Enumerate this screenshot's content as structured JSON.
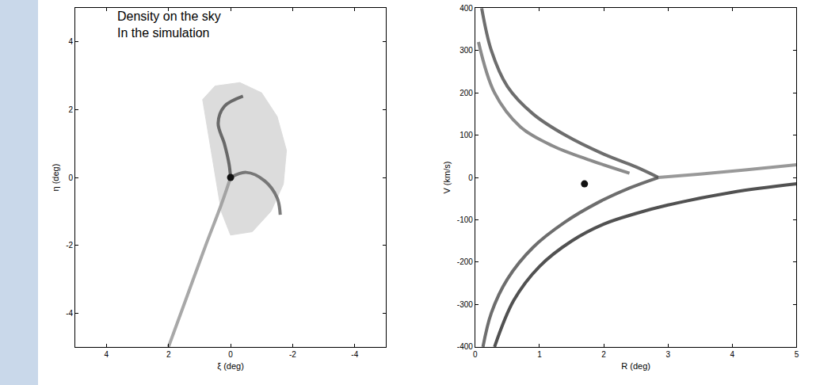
{
  "chart_data": [
    {
      "type": "line",
      "annotation": "Density on the sky\nIn the simulation",
      "x_label": "ξ (deg)",
      "y_label": "η (deg)",
      "xlim": [
        5,
        -5
      ],
      "ylim": [
        -5,
        5
      ],
      "xticks": [
        4,
        2,
        0,
        -2,
        -4
      ],
      "yticks": [
        -4,
        -2,
        0,
        2,
        4
      ],
      "grid": false,
      "series": [
        {
          "type": "area",
          "color": "#d9d9d9",
          "x": [
            0.9,
            0.5,
            -0.3,
            -1.0,
            -1.5,
            -1.8,
            -1.7,
            -1.3,
            -0.7,
            0.0,
            0.3,
            0.9
          ],
          "values": [
            2.3,
            2.7,
            2.8,
            2.5,
            1.8,
            0.8,
            -0.2,
            -1.0,
            -1.6,
            -1.7,
            -1.0,
            2.3
          ]
        },
        {
          "type": "line",
          "color": "#999999",
          "x": [
            0,
            0.3,
            0.8,
            1.4,
            2.0
          ],
          "values": [
            0,
            -0.8,
            -2,
            -3.5,
            -5
          ]
        },
        {
          "type": "line",
          "color": "#555555",
          "x": [
            0,
            0.05,
            0.2,
            0.4,
            0.2,
            -0.4
          ],
          "values": [
            0,
            0.4,
            1.0,
            1.6,
            2.1,
            2.4
          ]
        },
        {
          "type": "line",
          "color": "#666666",
          "x": [
            0,
            -0.5,
            -1.1,
            -1.5,
            -1.6
          ],
          "values": [
            0,
            0.15,
            -0.1,
            -0.6,
            -1.1
          ]
        },
        {
          "type": "scatter",
          "color": "#111111",
          "x": [
            0
          ],
          "values": [
            0
          ]
        }
      ]
    },
    {
      "type": "line",
      "x_label": "R (deg)",
      "y_label": "V (km/s)",
      "xlim": [
        0,
        5
      ],
      "ylim": [
        -400,
        400
      ],
      "xticks": [
        0,
        1,
        2,
        3,
        4,
        5
      ],
      "yticks": [
        -400,
        -300,
        -200,
        -100,
        0,
        100,
        200,
        300,
        400
      ],
      "grid": false,
      "series": [
        {
          "type": "line",
          "color": "#555555",
          "x": [
            0.1,
            0.25,
            0.5,
            0.9,
            1.4,
            2.0,
            2.5,
            2.85
          ],
          "values": [
            400,
            300,
            215,
            150,
            100,
            55,
            25,
            0
          ]
        },
        {
          "type": "line",
          "color": "#555555",
          "x": [
            2.85,
            2.4,
            1.9,
            1.4,
            0.9,
            0.5,
            0.25,
            0.12
          ],
          "values": [
            0,
            -25,
            -60,
            -105,
            -165,
            -240,
            -320,
            -400
          ]
        },
        {
          "type": "line",
          "color": "#333333",
          "x": [
            0.3,
            0.6,
            1.0,
            1.5,
            2.0,
            2.5,
            3,
            4,
            5
          ],
          "values": [
            -400,
            -290,
            -210,
            -150,
            -110,
            -85,
            -65,
            -35,
            -15
          ]
        },
        {
          "type": "line",
          "color": "#888888",
          "x": [
            2.85,
            3.5,
            4.2,
            5
          ],
          "values": [
            0,
            8,
            18,
            30
          ]
        },
        {
          "type": "line",
          "color": "#777777",
          "x": [
            0.05,
            0.3,
            0.7,
            1.2,
            1.8,
            2.4
          ],
          "values": [
            320,
            200,
            120,
            75,
            40,
            10
          ]
        },
        {
          "type": "scatter",
          "color": "#111111",
          "x": [
            1.7
          ],
          "values": [
            -15
          ]
        }
      ]
    }
  ]
}
